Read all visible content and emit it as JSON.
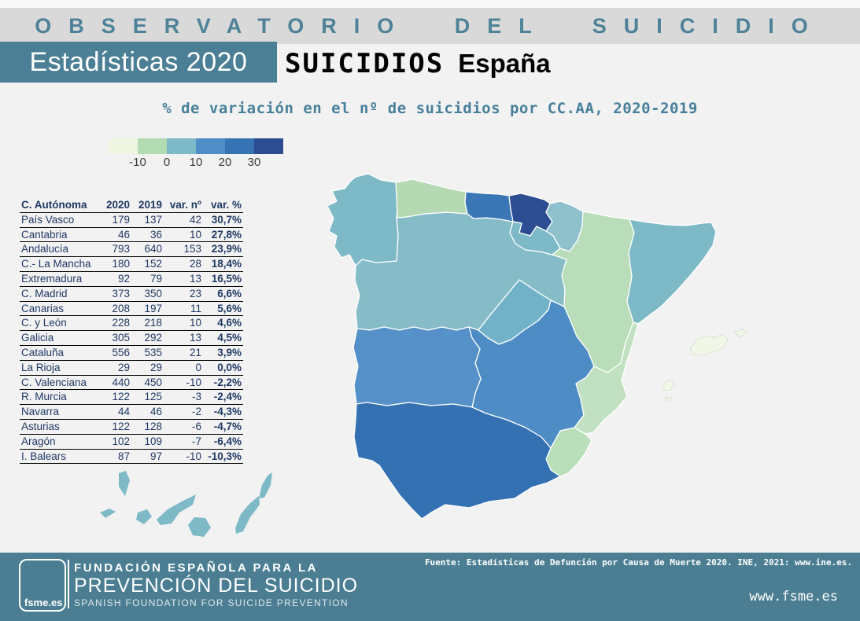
{
  "header": {
    "banner": "OBSERVATORIO DEL SUICIDIO",
    "badge": "Estadísticas 2020",
    "title_main": "SUICIDIOS",
    "title_suffix": "España",
    "subtitle": "% de variación en el nº de suicidios por CC.AA, 2020-2019"
  },
  "legend": {
    "ticks": [
      "-10",
      "0",
      "10",
      "20",
      "30"
    ],
    "colors": [
      "#eef6e2",
      "#b3dcb2",
      "#7db9c6",
      "#4f8ec6",
      "#3673b4",
      "#2c4d92"
    ]
  },
  "table": {
    "headers": [
      "C. Autónoma",
      "2020",
      "2019",
      "var. nº",
      "var. %"
    ],
    "rows": [
      [
        "País Vasco",
        "179",
        "137",
        "42",
        "30,7%"
      ],
      [
        "Cantabria",
        "46",
        "36",
        "10",
        "27,8%"
      ],
      [
        "Andalucía",
        "793",
        "640",
        "153",
        "23,9%"
      ],
      [
        "C.- La Mancha",
        "180",
        "152",
        "28",
        "18,4%"
      ],
      [
        "Extremadura",
        "92",
        "79",
        "13",
        "16,5%"
      ],
      [
        "C. Madrid",
        "373",
        "350",
        "23",
        "6,6%"
      ],
      [
        "Canarias",
        "208",
        "197",
        "11",
        "5,6%"
      ],
      [
        "C. y León",
        "228",
        "218",
        "10",
        "4,6%"
      ],
      [
        "Galicia",
        "305",
        "292",
        "13",
        "4,5%"
      ],
      [
        "Cataluña",
        "556",
        "535",
        "21",
        "3,9%"
      ],
      [
        "La Rioja",
        "29",
        "29",
        "0",
        "0,0%"
      ],
      [
        "C. Valenciana",
        "440",
        "450",
        "-10",
        "-2,2%"
      ],
      [
        "R. Murcia",
        "122",
        "125",
        "-3",
        "-2,4%"
      ],
      [
        "Navarra",
        "44",
        "46",
        "-2",
        "-4,3%"
      ],
      [
        "Asturias",
        "122",
        "128",
        "-6",
        "-4,7%"
      ],
      [
        "Aragón",
        "102",
        "109",
        "-7",
        "-6,4%"
      ],
      [
        "I. Balears",
        "87",
        "97",
        "-10",
        "-10,3%"
      ]
    ]
  },
  "map": {
    "regions": [
      {
        "id": "galicia",
        "name": "Galicia",
        "fill": "#7db9c6"
      },
      {
        "id": "asturias",
        "name": "Asturias",
        "fill": "#b5dab3"
      },
      {
        "id": "cantabria",
        "name": "Cantabria",
        "fill": "#3b77b7"
      },
      {
        "id": "pais-vasco",
        "name": "País Vasco",
        "fill": "#2c4d92"
      },
      {
        "id": "navarra",
        "name": "Navarra",
        "fill": "#8ec1cc"
      },
      {
        "id": "la-rioja",
        "name": "La Rioja",
        "fill": "#7db9c6"
      },
      {
        "id": "aragon",
        "name": "Aragón",
        "fill": "#b9ddb8"
      },
      {
        "id": "cataluna",
        "name": "Cataluña",
        "fill": "#7db9c6"
      },
      {
        "id": "castilla-y-leon",
        "name": "C. y León",
        "fill": "#85bcc8"
      },
      {
        "id": "madrid",
        "name": "C. Madrid",
        "fill": "#72b2c8"
      },
      {
        "id": "castilla-la-mancha",
        "name": "C.- La Mancha",
        "fill": "#4d8cc4"
      },
      {
        "id": "extremadura",
        "name": "Extremadura",
        "fill": "#5591c8"
      },
      {
        "id": "valencia",
        "name": "C. Valenciana",
        "fill": "#c2e1c3"
      },
      {
        "id": "murcia",
        "name": "R. Murcia",
        "fill": "#b9deba"
      },
      {
        "id": "andalucia",
        "name": "Andalucía",
        "fill": "#3371b3"
      },
      {
        "id": "balears",
        "name": "I. Balears",
        "fill": "#f0f7e6"
      },
      {
        "id": "canarias",
        "name": "Canarias",
        "fill": "#7db9c6"
      }
    ]
  },
  "footer": {
    "logo_text": "fsme.es",
    "line1": "FUNDACIÓN ESPAÑOLA PARA LA",
    "line2": "PREVENCIÓN DEL SUICIDIO",
    "line3": "SPANISH FOUNDATION FOR SUICIDE PREVENTION",
    "source": "Fuente: Estadísticas de Defunción por Causa de Muerte 2020. INE, 2021: www.ine.es.",
    "website": "www.fsme.es"
  },
  "chart_data": {
    "type": "choropleth",
    "title": "% de variación en el nº de suicidios por CC.AA, 2020-2019",
    "legend_breaks": [
      -10,
      0,
      10,
      20,
      30
    ],
    "legend_colors": [
      "#eef6e2",
      "#b3dcb2",
      "#7db9c6",
      "#4f8ec6",
      "#3673b4",
      "#2c4d92"
    ],
    "regions": [
      {
        "name": "País Vasco",
        "y2020": 179,
        "y2019": 137,
        "var_n": 42,
        "var_pct": 30.7
      },
      {
        "name": "Cantabria",
        "y2020": 46,
        "y2019": 36,
        "var_n": 10,
        "var_pct": 27.8
      },
      {
        "name": "Andalucía",
        "y2020": 793,
        "y2019": 640,
        "var_n": 153,
        "var_pct": 23.9
      },
      {
        "name": "C.- La Mancha",
        "y2020": 180,
        "y2019": 152,
        "var_n": 28,
        "var_pct": 18.4
      },
      {
        "name": "Extremadura",
        "y2020": 92,
        "y2019": 79,
        "var_n": 13,
        "var_pct": 16.5
      },
      {
        "name": "C. Madrid",
        "y2020": 373,
        "y2019": 350,
        "var_n": 23,
        "var_pct": 6.6
      },
      {
        "name": "Canarias",
        "y2020": 208,
        "y2019": 197,
        "var_n": 11,
        "var_pct": 5.6
      },
      {
        "name": "C. y León",
        "y2020": 228,
        "y2019": 218,
        "var_n": 10,
        "var_pct": 4.6
      },
      {
        "name": "Galicia",
        "y2020": 305,
        "y2019": 292,
        "var_n": 13,
        "var_pct": 4.5
      },
      {
        "name": "Cataluña",
        "y2020": 556,
        "y2019": 535,
        "var_n": 21,
        "var_pct": 3.9
      },
      {
        "name": "La Rioja",
        "y2020": 29,
        "y2019": 29,
        "var_n": 0,
        "var_pct": 0.0
      },
      {
        "name": "C. Valenciana",
        "y2020": 440,
        "y2019": 450,
        "var_n": -10,
        "var_pct": -2.2
      },
      {
        "name": "R. Murcia",
        "y2020": 122,
        "y2019": 125,
        "var_n": -3,
        "var_pct": -2.4
      },
      {
        "name": "Navarra",
        "y2020": 44,
        "y2019": 46,
        "var_n": -2,
        "var_pct": -4.3
      },
      {
        "name": "Asturias",
        "y2020": 122,
        "y2019": 128,
        "var_n": -6,
        "var_pct": -4.7
      },
      {
        "name": "Aragón",
        "y2020": 102,
        "y2019": 109,
        "var_n": -7,
        "var_pct": -6.4
      },
      {
        "name": "I. Balears",
        "y2020": 87,
        "y2019": 97,
        "var_n": -10,
        "var_pct": -10.3
      }
    ]
  }
}
